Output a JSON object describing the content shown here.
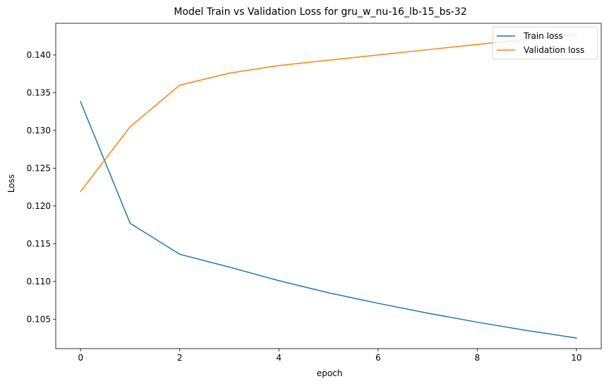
{
  "chart_data": {
    "type": "line",
    "title": "Model Train vs Validation Loss for gru_w_nu-16_lb-15_bs-32",
    "xlabel": "epoch",
    "ylabel": "Loss",
    "xlim": [
      -0.5,
      10.5
    ],
    "ylim": [
      0.1011,
      0.1442
    ],
    "x_ticks": [
      0,
      2,
      4,
      6,
      8,
      10
    ],
    "x_tick_labels": [
      "0",
      "2",
      "4",
      "6",
      "8",
      "10"
    ],
    "y_ticks": [
      0.105,
      0.11,
      0.115,
      0.12,
      0.125,
      0.13,
      0.135,
      0.14
    ],
    "y_tick_labels": [
      "0.105",
      "0.110",
      "0.115",
      "0.120",
      "0.125",
      "0.130",
      "0.135",
      "0.140"
    ],
    "grid": false,
    "legend_position": "top-right",
    "x": [
      0,
      1,
      2,
      3,
      4,
      5,
      6,
      7,
      8,
      9,
      10
    ],
    "series": [
      {
        "name": "Train loss",
        "color": "#1f77b4",
        "values": [
          0.1338,
          0.1177,
          0.1136,
          0.1119,
          0.1101,
          0.1085,
          0.1071,
          0.1058,
          0.1046,
          0.1035,
          0.1025
        ]
      },
      {
        "name": "Validation loss",
        "color": "#ff7f0e",
        "values": [
          0.1219,
          0.1305,
          0.136,
          0.1376,
          0.1386,
          0.1393,
          0.14,
          0.1407,
          0.1414,
          0.1421,
          0.1427
        ]
      }
    ]
  }
}
